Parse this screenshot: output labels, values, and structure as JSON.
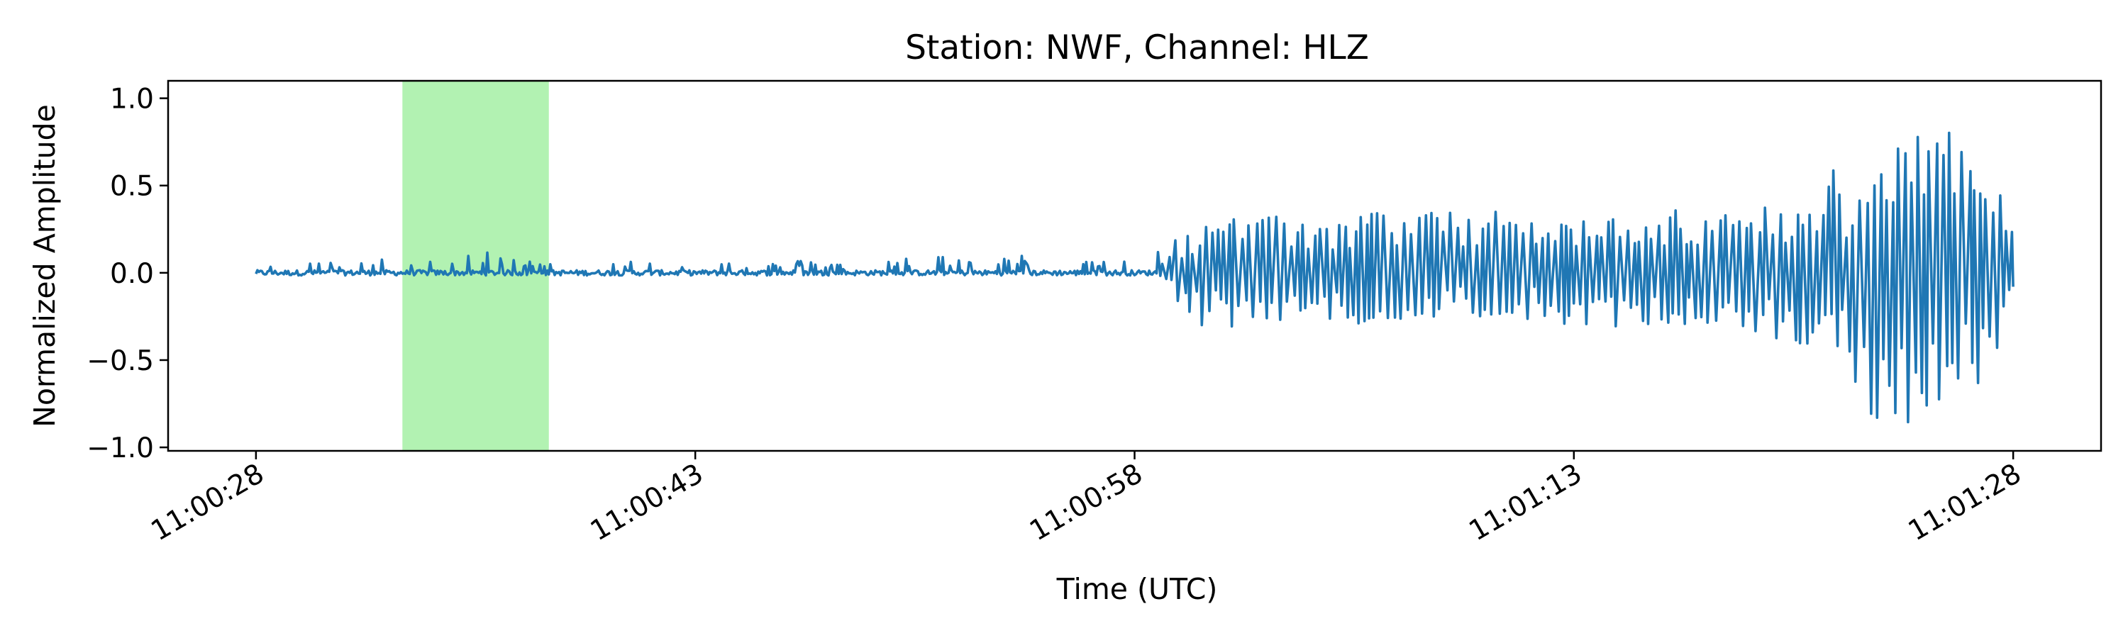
{
  "chart_data": {
    "type": "line",
    "title": "Station: NWF, Channel: HLZ",
    "xlabel": "Time (UTC)",
    "ylabel": "Normalized Amplitude",
    "x_unit": "time_of_day",
    "xlim": [
      "11:00:25",
      "11:01:31"
    ],
    "ylim": [
      -1.02,
      1.1
    ],
    "x_ticks": [
      "11:00:28",
      "11:00:43",
      "11:00:58",
      "11:01:13",
      "11:01:28"
    ],
    "y_ticks": [
      {
        "value": -1.0,
        "label": "−1.0"
      },
      {
        "value": -0.5,
        "label": "−0.5"
      },
      {
        "value": 0.0,
        "label": "0.0"
      },
      {
        "value": 0.5,
        "label": "0.5"
      },
      {
        "value": 1.0,
        "label": "1.0"
      }
    ],
    "grid": false,
    "legend": "none",
    "highlight_span": {
      "start": "11:00:33",
      "end": "11:00:38",
      "color": "#b2f2b2"
    },
    "series": [
      {
        "color": "#1f77b4",
        "x": [
          "11:00:28",
          "11:00:29",
          "11:00:30",
          "11:00:31",
          "11:00:32",
          "11:00:33",
          "11:00:34",
          "11:00:35",
          "11:00:36",
          "11:00:37",
          "11:00:38",
          "11:00:39",
          "11:00:40",
          "11:00:41",
          "11:00:42",
          "11:00:43",
          "11:00:44",
          "11:00:45",
          "11:00:46",
          "11:00:47",
          "11:00:48",
          "11:00:49",
          "11:00:50",
          "11:00:51",
          "11:00:52",
          "11:00:53",
          "11:00:54",
          "11:00:55",
          "11:00:56",
          "11:00:57",
          "11:00:58",
          "11:00:59",
          "11:01:00",
          "11:01:01",
          "11:01:02",
          "11:01:03",
          "11:01:04",
          "11:01:05",
          "11:01:06",
          "11:01:07",
          "11:01:08",
          "11:01:09",
          "11:01:10",
          "11:01:11",
          "11:01:12",
          "11:01:13",
          "11:01:14",
          "11:01:15",
          "11:01:16",
          "11:01:17",
          "11:01:18",
          "11:01:19",
          "11:01:20",
          "11:01:21",
          "11:01:22",
          "11:01:23",
          "11:01:24",
          "11:01:25",
          "11:01:26",
          "11:01:27",
          "11:01:28"
        ],
        "envelope_max": [
          0.02,
          0.08,
          0.07,
          0.05,
          0.09,
          0.06,
          0.08,
          0.09,
          0.12,
          0.07,
          0.09,
          0.11,
          0.08,
          0.07,
          0.06,
          0.05,
          0.07,
          0.05,
          0.06,
          0.08,
          0.05,
          0.06,
          0.08,
          0.11,
          0.09,
          0.06,
          0.11,
          0.05,
          0.09,
          0.08,
          0.06,
          0.15,
          0.28,
          0.35,
          0.3,
          0.33,
          0.32,
          0.28,
          0.38,
          0.33,
          0.36,
          0.35,
          0.35,
          0.35,
          0.31,
          0.3,
          0.3,
          0.35,
          0.44,
          0.3,
          0.36,
          0.3,
          0.46,
          0.37,
          0.65,
          0.45,
          0.7,
          1.0,
          0.78,
          0.57,
          0.57
        ],
        "envelope_min": [
          -0.02,
          -0.02,
          -0.02,
          -0.02,
          -0.02,
          -0.02,
          -0.02,
          -0.02,
          -0.03,
          -0.02,
          -0.02,
          -0.02,
          -0.03,
          -0.02,
          -0.02,
          -0.02,
          -0.02,
          -0.03,
          -0.02,
          -0.02,
          -0.03,
          -0.02,
          -0.03,
          -0.02,
          -0.02,
          -0.02,
          -0.02,
          -0.02,
          -0.02,
          -0.02,
          -0.03,
          -0.05,
          -0.3,
          -0.33,
          -0.33,
          -0.27,
          -0.25,
          -0.27,
          -0.3,
          -0.3,
          -0.25,
          -0.25,
          -0.25,
          -0.3,
          -0.28,
          -0.3,
          -0.3,
          -0.32,
          -0.3,
          -0.3,
          -0.32,
          -0.38,
          -0.38,
          -0.45,
          -0.55,
          -0.82,
          -0.88,
          -0.88,
          -0.78,
          -0.78,
          -0.08
        ]
      }
    ]
  }
}
